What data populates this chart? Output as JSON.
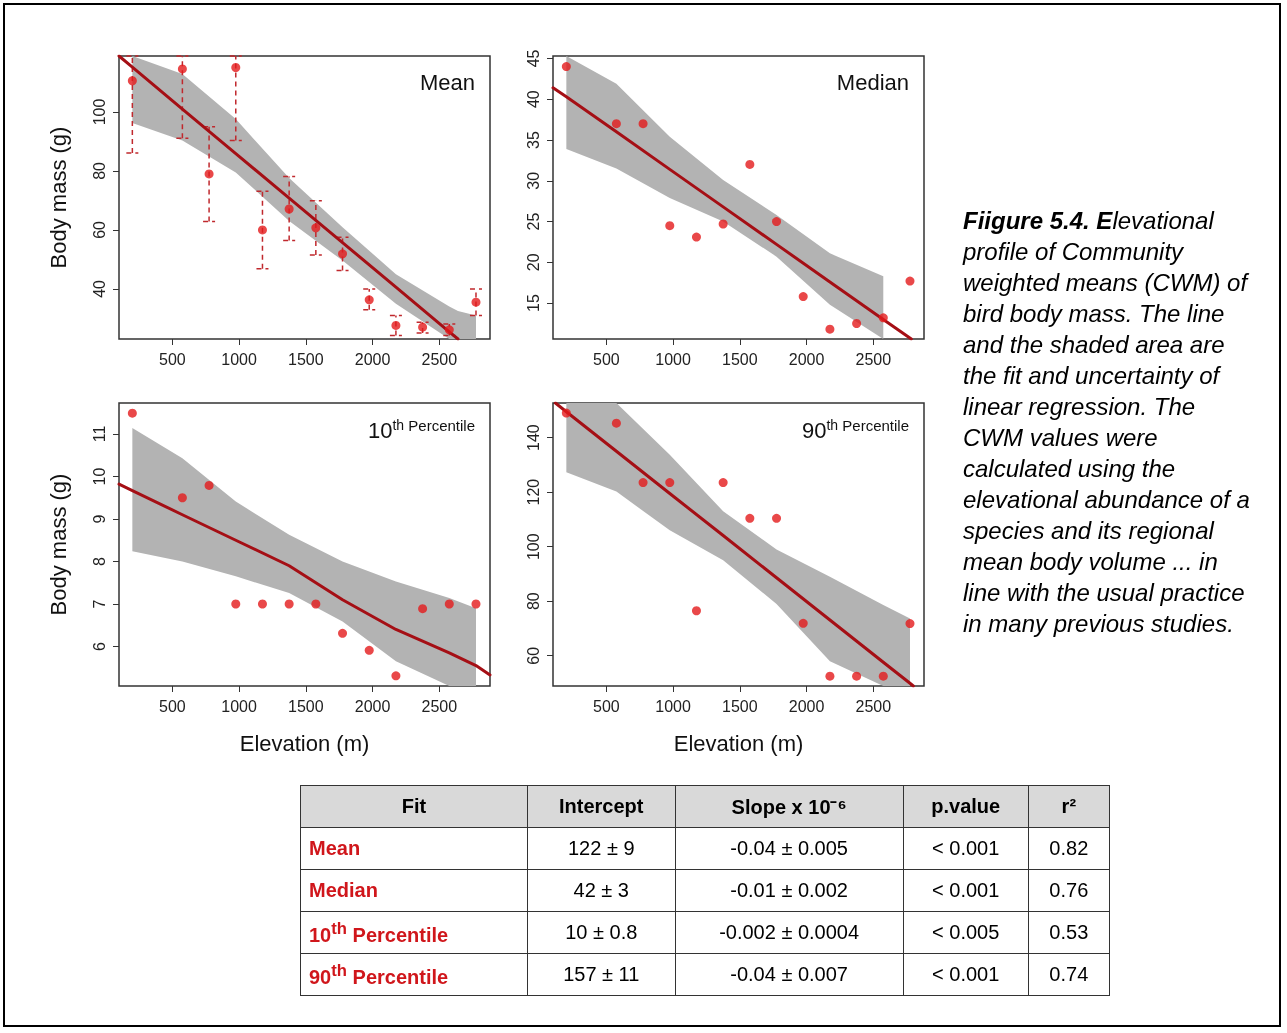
{
  "chart_data": [
    {
      "type": "scatter",
      "title": "Mean",
      "ylabel": "Body mass (g)",
      "xlim": [
        100,
        2880
      ],
      "xticks": [
        500,
        1000,
        1500,
        2000,
        2500
      ],
      "ylim": [
        23,
        119
      ],
      "yticks": [
        40,
        60,
        80,
        100
      ],
      "series": [
        {
          "type": "scatter",
          "marker": "circle",
          "color": "#e31a1c",
          "x": [
            200,
            575,
            775,
            975,
            1175,
            1375,
            1575,
            1775,
            1975,
            2175,
            2375,
            2575,
            2775
          ],
          "values": [
            110.6,
            114.6,
            79,
            115.1,
            60,
            67.1,
            60.7,
            51.9,
            36.3,
            27.6,
            27,
            26.1,
            35.5
          ],
          "errors": [
            [
              86.1,
              119
            ],
            [
              91.1,
              119
            ],
            [
              62.9,
              95
            ],
            [
              90.3,
              119
            ],
            [
              46.8,
              73.1
            ],
            [
              56.4,
              78.1
            ],
            [
              51.5,
              69.9
            ],
            [
              46.2,
              57.5
            ],
            [
              32.9,
              40
            ],
            [
              24.2,
              31
            ],
            [
              25,
              28.7
            ],
            [
              24.2,
              28.1
            ],
            [
              31,
              40
            ]
          ]
        },
        {
          "type": "line",
          "color": "#a50f15",
          "line_style": "solid",
          "x": [
            100,
            200,
            575,
            975,
            1375,
            1775,
            2175,
            2575,
            2640,
            2775
          ],
          "values": [
            119,
            115.2,
            101,
            85.9,
            70.8,
            55.7,
            40.6,
            25.4,
            23,
            null
          ],
          "lower": [
            null,
            96.3,
            90.3,
            79.5,
            63,
            49.6,
            35,
            23,
            23,
            23
          ],
          "upper": [
            null,
            119,
            112.9,
            97.6,
            77.6,
            60.9,
            45,
            34,
            32.5,
            31
          ]
        }
      ]
    },
    {
      "type": "scatter",
      "title": "Median",
      "xlim": [
        100,
        2880
      ],
      "xticks": [
        500,
        1000,
        1500,
        2000,
        2500
      ],
      "ylim": [
        10.6,
        45.3
      ],
      "yticks": [
        15,
        20,
        25,
        30,
        35,
        40,
        45
      ],
      "series": [
        {
          "type": "scatter",
          "marker": "circle",
          "color": "#e31a1c",
          "x": [
            200,
            575,
            775,
            975,
            1175,
            1375,
            1575,
            1775,
            1975,
            2175,
            2375,
            2575,
            2775
          ],
          "values": [
            44,
            37,
            37,
            24.5,
            23.1,
            24.7,
            32,
            25,
            15.8,
            11.8,
            12.5,
            13.2,
            17.7
          ]
        },
        {
          "type": "line",
          "color": "#a50f15",
          "line_style": "solid",
          "x": [
            100,
            200,
            575,
            975,
            1375,
            1775,
            2175,
            2575,
            2785
          ],
          "values": [
            41.4,
            40.3,
            36,
            31.4,
            26.8,
            22.2,
            17.6,
            13,
            10.6
          ],
          "lower": [
            null,
            33.9,
            31.5,
            27.9,
            25,
            20.7,
            14.8,
            10.6,
            null
          ],
          "upper": [
            null,
            45.3,
            41.9,
            35.4,
            30.1,
            25.8,
            21.1,
            18.3,
            null
          ]
        }
      ]
    },
    {
      "type": "scatter",
      "title": "10$^{th}$ Percentile",
      "xlabel": "Elevation (m)",
      "ylabel": "Body mass (g)",
      "xlim": [
        100,
        2880
      ],
      "xticks": [
        500,
        1000,
        1500,
        2000,
        2500
      ],
      "ylim": [
        5.07,
        11.73
      ],
      "yticks": [
        6,
        7,
        8,
        9,
        10,
        11
      ],
      "series": [
        {
          "type": "scatter",
          "marker": "circle",
          "color": "#e31a1c",
          "x": [
            200,
            575,
            775,
            975,
            1175,
            1375,
            1575,
            1775,
            1975,
            2175,
            2375,
            2575,
            2775
          ],
          "values": [
            11.49,
            9.5,
            9.79,
            7,
            7,
            7,
            7,
            6.31,
            5.91,
            5.31,
            6.89,
            7,
            7
          ]
        },
        {
          "type": "line",
          "color": "#a50f15",
          "line_style": "solid",
          "x": [
            100,
            200,
            575,
            975,
            1375,
            1775,
            2175,
            2575,
            2775,
            2880
          ],
          "values": [
            9.82,
            9.67,
            9.1,
            8.5,
            7.9,
            7.1,
            6.4,
            5.85,
            5.55,
            5.33
          ],
          "lower": [
            null,
            8.24,
            8,
            7.65,
            7.26,
            6.59,
            5.65,
            5.07,
            5.07,
            null
          ],
          "upper": [
            null,
            11.14,
            10.43,
            9.41,
            8.63,
            8,
            7.53,
            7.14,
            6.9,
            null
          ]
        }
      ]
    },
    {
      "type": "scatter",
      "title": "90$^{th}$ Percentile",
      "xlabel": "Elevation (m)",
      "xlim": [
        100,
        2880
      ],
      "xticks": [
        500,
        1000,
        1500,
        2000,
        2500
      ],
      "ylim": [
        48.9,
        152.7
      ],
      "yticks": [
        60,
        80,
        100,
        120,
        140
      ],
      "series": [
        {
          "type": "scatter",
          "marker": "circle",
          "color": "#e31a1c",
          "x": [
            200,
            575,
            775,
            975,
            1175,
            1375,
            1575,
            1775,
            1975,
            2175,
            2375,
            2575,
            2775
          ],
          "values": [
            149,
            145.3,
            123.5,
            123.5,
            76.5,
            123.5,
            110.4,
            110.4,
            71.9,
            52.5,
            52.5,
            52.5,
            71.8
          ]
        },
        {
          "type": "line",
          "color": "#a50f15",
          "line_style": "solid",
          "x": [
            118,
            200,
            575,
            975,
            1375,
            1775,
            2175,
            2575,
            2775,
            2800
          ],
          "values": [
            152.7,
            149.5,
            135,
            119.5,
            104.1,
            88.6,
            73.1,
            57.6,
            49.9,
            48.9
          ],
          "lower": [
            null,
            127.3,
            120.2,
            106,
            95,
            79,
            58,
            48.9,
            48.9,
            null
          ],
          "upper": [
            null,
            152.7,
            152.7,
            133.7,
            113,
            99,
            89,
            78.6,
            73.7,
            null
          ]
        }
      ]
    },
    {
      "type": "other",
      "title": "Fiigure 5.4. E",
      "subtitle": "levational profile of Community weighted means (CWM) of bird body mass. The line and the shaded area are the fit and uncertainty of linear regression. The CWM values were calculated using the elevational abundance of a species and its regional mean body volume ... in line with the usual practice in many previous studies."
    },
    {
      "type": "other",
      "color": "#d0161b",
      "categories": [
        "Fit",
        "Intercept",
        "Slope x 10⁻⁶",
        "p.value",
        "r²"
      ],
      "y_categories": [
        "Mean",
        "Median",
        "10$^{th}$ Percentile",
        "90$^{th}$ Percentile"
      ],
      "cell_labels": [
        [
          "122 ± 9",
          "-0.04 ± 0.005",
          "< 0.001",
          "0.82"
        ],
        [
          "42 ± 3",
          "-0.01 ± 0.002",
          "< 0.001",
          "0.76"
        ],
        [
          "10 ± 0.8",
          "-0.002 ± 0.0004",
          "< 0.005",
          "0.53"
        ],
        [
          "157 ± 11",
          "-0.04 ± 0.007",
          "< 0.001",
          "0.74"
        ]
      ]
    }
  ]
}
